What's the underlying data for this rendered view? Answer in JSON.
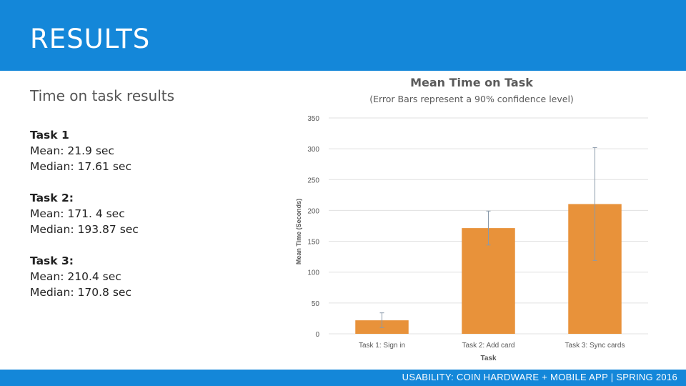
{
  "slide": {
    "title": "RESULTS",
    "subtitle": "Time on task results",
    "tasks": [
      {
        "name": "Task 1",
        "mean": "Mean: 21.9 sec",
        "median": "Median: 17.61 sec"
      },
      {
        "name": "Task 2:",
        "mean": "Mean: 171. 4 sec",
        "median": "Median: 193.87 sec"
      },
      {
        "name": "Task 3:",
        "mean": "Mean: 210.4 sec",
        "median": "Median: 170.8 sec"
      }
    ],
    "footer": "USABILITY: COIN HARDWARE + MOBILE APP | SPRING 2016"
  },
  "colors": {
    "header_bg": "#1487d9",
    "bar": "#e8923a",
    "error_bar": "#8a9aaa",
    "grid": "#e0e0e0"
  },
  "chart_data": {
    "type": "bar",
    "title": "Mean Time on Task",
    "subtitle": "(Error Bars represent a 90% confidence level)",
    "xlabel": "Task",
    "ylabel": "Mean Time (Seconds)",
    "categories": [
      "Task 1: Sign in",
      "Task 2: Add card",
      "Task 3: Sync cards"
    ],
    "values": [
      21.9,
      171.4,
      210.4
    ],
    "error_low": [
      10,
      144,
      119
    ],
    "error_high": [
      34,
      199,
      302
    ],
    "ylim": [
      0,
      350
    ],
    "yticks": [
      0,
      50,
      100,
      150,
      200,
      250,
      300,
      350
    ],
    "grid": true
  }
}
